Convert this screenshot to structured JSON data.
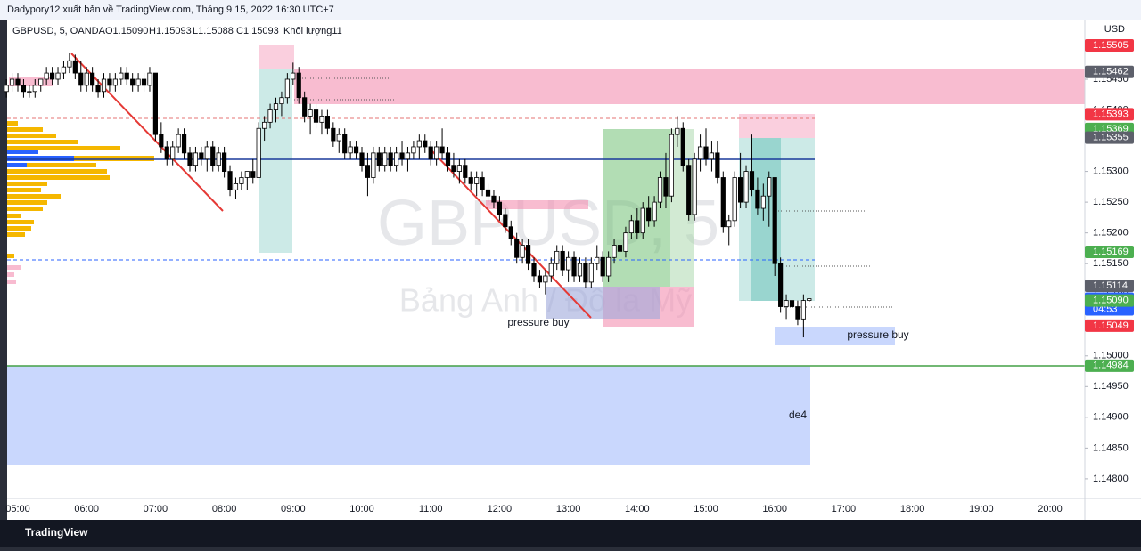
{
  "header": "Dadypory12 xuất bản về TradingView.com, Tháng 9 15, 2022 16:30 UTC+7",
  "footer": "TradingView",
  "chart_data": {
    "type": "candlestick",
    "title": "GBPUSD, 5, OANDA",
    "ohlc_legend": [
      "O1.15090",
      "H1.15093",
      "L1.15088",
      "C1.15093"
    ],
    "volume_legend": "Khối lượng11",
    "currency": "USD",
    "watermark": "GBPUSD, 5",
    "watermark_subtitle": "Bảng Anh / Đô la Mỹ",
    "annotations": [
      "pressure buy",
      "pressure buy",
      "de4"
    ],
    "xlabels": [
      "05:00",
      "06:00",
      "07:00",
      "08:00",
      "09:00",
      "10:00",
      "11:00",
      "12:00",
      "13:00",
      "14:00",
      "15:00",
      "16:00",
      "17:00",
      "18:00",
      "19:00",
      "20:00"
    ],
    "ylim": [
      1.14768,
      1.15547
    ],
    "yticks": [
      {
        "value": 1.148,
        "label": "1.14800"
      },
      {
        "value": 1.1485,
        "label": "1.14850"
      },
      {
        "value": 1.149,
        "label": "1.14900"
      },
      {
        "value": 1.1495,
        "label": "1.14950"
      },
      {
        "value": 1.15,
        "label": "1.15000"
      },
      {
        "value": 1.1505,
        "label": "1.15050"
      },
      {
        "value": 1.151,
        "label": "1.15100"
      },
      {
        "value": 1.1515,
        "label": "1.15150"
      },
      {
        "value": 1.152,
        "label": "1.15200"
      },
      {
        "value": 1.1525,
        "label": "1.15250"
      },
      {
        "value": 1.153,
        "label": "1.15300"
      },
      {
        "value": 1.1535,
        "label": "1.15350"
      },
      {
        "value": 1.154,
        "label": "1.15400"
      },
      {
        "value": 1.1545,
        "label": "1.15450"
      }
    ],
    "grid": false,
    "up_color": "#ffffff",
    "down_color": "#000000",
    "price_labels": [
      {
        "value": 1.15505,
        "color": "#f23645"
      },
      {
        "value": 1.15462,
        "color": "#5d606b"
      },
      {
        "value": 1.15393,
        "color": "#f23645"
      },
      {
        "value": 1.15369,
        "color": "#4caf50"
      },
      {
        "value": 1.15355,
        "color": "#5d606b"
      },
      {
        "value": 1.15169,
        "color": "#4caf50"
      },
      {
        "value": 1.15114,
        "color": "#5d606b"
      },
      {
        "value": 1.15093,
        "color": "#2962ff",
        "sublabel": "04:53"
      },
      {
        "value": 1.1509,
        "label": "1.15090",
        "color": "#4caf50"
      },
      {
        "value": 1.15049,
        "color": "#f23645"
      },
      {
        "value": 1.14984,
        "color": "#4caf50"
      }
    ],
    "candles": [
      [
        1.1543,
        1.1545,
        1.1542,
        1.1544
      ],
      [
        1.1544,
        1.1546,
        1.1543,
        1.1545
      ],
      [
        1.1545,
        1.1546,
        1.1543,
        1.1544
      ],
      [
        1.1544,
        1.1545,
        1.1542,
        1.1543
      ],
      [
        1.1543,
        1.1544,
        1.1542,
        1.1543
      ],
      [
        1.1543,
        1.1545,
        1.1542,
        1.1544
      ],
      [
        1.1544,
        1.1545,
        1.1543,
        1.1545
      ],
      [
        1.1545,
        1.1547,
        1.1544,
        1.1546
      ],
      [
        1.1546,
        1.1547,
        1.1544,
        1.1545
      ],
      [
        1.1545,
        1.1547,
        1.1544,
        1.1546
      ],
      [
        1.1546,
        1.1548,
        1.1545,
        1.1547
      ],
      [
        1.1547,
        1.15492,
        1.1546,
        1.1548
      ],
      [
        1.1548,
        1.1549,
        1.1545,
        1.1546
      ],
      [
        1.1546,
        1.1548,
        1.1543,
        1.1544
      ],
      [
        1.1544,
        1.1547,
        1.1543,
        1.1546
      ],
      [
        1.1546,
        1.1547,
        1.1543,
        1.1544
      ],
      [
        1.1544,
        1.1545,
        1.1542,
        1.1543
      ],
      [
        1.1543,
        1.1546,
        1.1542,
        1.1545
      ],
      [
        1.1545,
        1.1546,
        1.1543,
        1.1544
      ],
      [
        1.1544,
        1.1546,
        1.1543,
        1.1545
      ],
      [
        1.1545,
        1.1547,
        1.1544,
        1.1546
      ],
      [
        1.1546,
        1.1547,
        1.1544,
        1.1545
      ],
      [
        1.1545,
        1.1546,
        1.1543,
        1.1544
      ],
      [
        1.1544,
        1.1546,
        1.1543,
        1.1545
      ],
      [
        1.1545,
        1.1546,
        1.1543,
        1.1544
      ],
      [
        1.1544,
        1.1547,
        1.1543,
        1.1546
      ],
      [
        1.1546,
        1.1546,
        1.1535,
        1.1536
      ],
      [
        1.1536,
        1.1538,
        1.1533,
        1.1534
      ],
      [
        1.1534,
        1.1535,
        1.1531,
        1.1532
      ],
      [
        1.1532,
        1.1535,
        1.1531,
        1.1534
      ],
      [
        1.1534,
        1.1537,
        1.1533,
        1.1536
      ],
      [
        1.1536,
        1.1537,
        1.1532,
        1.1533
      ],
      [
        1.1533,
        1.1534,
        1.153,
        1.1531
      ],
      [
        1.1531,
        1.1534,
        1.153,
        1.1533
      ],
      [
        1.1533,
        1.1534,
        1.1531,
        1.1532
      ],
      [
        1.1532,
        1.1535,
        1.153,
        1.1534
      ],
      [
        1.1534,
        1.1535,
        1.153,
        1.1531
      ],
      [
        1.1531,
        1.1534,
        1.153,
        1.1533
      ],
      [
        1.1533,
        1.1534,
        1.1529,
        1.153
      ],
      [
        1.153,
        1.1531,
        1.1526,
        1.1527
      ],
      [
        1.1527,
        1.1529,
        1.15255,
        1.1528
      ],
      [
        1.1528,
        1.153,
        1.1527,
        1.1529
      ],
      [
        1.1529,
        1.153,
        1.1527,
        1.153
      ],
      [
        1.153,
        1.1532,
        1.1528,
        1.1529
      ],
      [
        1.1529,
        1.1538,
        1.1529,
        1.1537
      ],
      [
        1.1537,
        1.1539,
        1.1535,
        1.1538
      ],
      [
        1.1538,
        1.1541,
        1.1537,
        1.154
      ],
      [
        1.154,
        1.1542,
        1.1538,
        1.1541
      ],
      [
        1.1541,
        1.1543,
        1.1539,
        1.1542
      ],
      [
        1.1542,
        1.1546,
        1.1541,
        1.1545
      ],
      [
        1.1545,
        1.15477,
        1.1544,
        1.1546
      ],
      [
        1.1546,
        1.1547,
        1.1541,
        1.1542
      ],
      [
        1.1542,
        1.1543,
        1.1538,
        1.1539
      ],
      [
        1.1539,
        1.1541,
        1.1536,
        1.154
      ],
      [
        1.154,
        1.1541,
        1.1537,
        1.1538
      ],
      [
        1.1538,
        1.154,
        1.1536,
        1.1539
      ],
      [
        1.1539,
        1.154,
        1.1536,
        1.1537
      ],
      [
        1.1537,
        1.1538,
        1.1534,
        1.1535
      ],
      [
        1.1535,
        1.1537,
        1.1533,
        1.1536
      ],
      [
        1.1536,
        1.1537,
        1.1532,
        1.1533
      ],
      [
        1.1533,
        1.1535,
        1.1532,
        1.1534
      ],
      [
        1.1534,
        1.1535,
        1.1532,
        1.1533
      ],
      [
        1.1533,
        1.1534,
        1.153,
        1.1531
      ],
      [
        1.1531,
        1.1533,
        1.1526,
        1.1529
      ],
      [
        1.1529,
        1.1534,
        1.1528,
        1.1533
      ],
      [
        1.1533,
        1.1534,
        1.153,
        1.1531
      ],
      [
        1.1531,
        1.1534,
        1.153,
        1.1533
      ],
      [
        1.1533,
        1.1534,
        1.153,
        1.1531
      ],
      [
        1.1531,
        1.1534,
        1.153,
        1.1533
      ],
      [
        1.1533,
        1.1535,
        1.1531,
        1.1532
      ],
      [
        1.1532,
        1.1534,
        1.153,
        1.1533
      ],
      [
        1.1533,
        1.1535,
        1.1532,
        1.1534
      ],
      [
        1.1534,
        1.1536,
        1.1532,
        1.1535
      ],
      [
        1.1535,
        1.1536,
        1.1533,
        1.1534
      ],
      [
        1.1534,
        1.1535,
        1.1531,
        1.1532
      ],
      [
        1.1532,
        1.1535,
        1.1531,
        1.1534
      ],
      [
        1.1534,
        1.1537,
        1.1532,
        1.1533
      ],
      [
        1.1533,
        1.1534,
        1.153,
        1.1531
      ],
      [
        1.1531,
        1.1533,
        1.1529,
        1.153
      ],
      [
        1.153,
        1.1532,
        1.1528,
        1.1531
      ],
      [
        1.1531,
        1.1532,
        1.1528,
        1.1529
      ],
      [
        1.1529,
        1.153,
        1.1527,
        1.1528
      ],
      [
        1.1528,
        1.153,
        1.1526,
        1.1529
      ],
      [
        1.1529,
        1.153,
        1.1526,
        1.1527
      ],
      [
        1.1527,
        1.1528,
        1.1525,
        1.1526
      ],
      [
        1.1526,
        1.1527,
        1.1524,
        1.1525
      ],
      [
        1.1525,
        1.1526,
        1.1522,
        1.1523
      ],
      [
        1.1523,
        1.1524,
        1.152,
        1.1521
      ],
      [
        1.1521,
        1.1522,
        1.1518,
        1.1519
      ],
      [
        1.1519,
        1.152,
        1.1515,
        1.1516
      ],
      [
        1.1516,
        1.1519,
        1.1515,
        1.1518
      ],
      [
        1.1518,
        1.1519,
        1.1514,
        1.1515
      ],
      [
        1.1515,
        1.1516,
        1.1512,
        1.1513
      ],
      [
        1.1513,
        1.1514,
        1.1511,
        1.1512
      ],
      [
        1.1512,
        1.1514,
        1.151,
        1.1513
      ],
      [
        1.1513,
        1.1516,
        1.1512,
        1.1515
      ],
      [
        1.1515,
        1.1518,
        1.1514,
        1.1517
      ],
      [
        1.1517,
        1.1518,
        1.1513,
        1.1514
      ],
      [
        1.1514,
        1.1517,
        1.1512,
        1.1516
      ],
      [
        1.1516,
        1.1517,
        1.1512,
        1.1513
      ],
      [
        1.1513,
        1.1516,
        1.1512,
        1.1515
      ],
      [
        1.1515,
        1.1516,
        1.1511,
        1.1512
      ],
      [
        1.1512,
        1.1516,
        1.1511,
        1.1515
      ],
      [
        1.1515,
        1.1518,
        1.1514,
        1.1516
      ],
      [
        1.1516,
        1.1517,
        1.1512,
        1.1513
      ],
      [
        1.1513,
        1.1517,
        1.1512,
        1.1516
      ],
      [
        1.1516,
        1.1519,
        1.1515,
        1.1518
      ],
      [
        1.1518,
        1.152,
        1.1516,
        1.1517
      ],
      [
        1.1517,
        1.1521,
        1.1516,
        1.152
      ],
      [
        1.152,
        1.1523,
        1.1519,
        1.1522
      ],
      [
        1.1522,
        1.1524,
        1.1519,
        1.152
      ],
      [
        1.152,
        1.1525,
        1.1519,
        1.1524
      ],
      [
        1.1524,
        1.1526,
        1.1521,
        1.1522
      ],
      [
        1.1522,
        1.1526,
        1.1521,
        1.1525
      ],
      [
        1.1525,
        1.153,
        1.1524,
        1.1529
      ],
      [
        1.1529,
        1.1533,
        1.1524,
        1.1526
      ],
      [
        1.1526,
        1.1537,
        1.1525,
        1.1536
      ],
      [
        1.1536,
        1.1539,
        1.1534,
        1.1537
      ],
      [
        1.1537,
        1.1538,
        1.153,
        1.1531
      ],
      [
        1.1531,
        1.1532,
        1.1522,
        1.1523
      ],
      [
        1.1523,
        1.1533,
        1.1522,
        1.1532
      ],
      [
        1.1532,
        1.1536,
        1.153,
        1.1534
      ],
      [
        1.1534,
        1.1537,
        1.1531,
        1.1532
      ],
      [
        1.1532,
        1.1535,
        1.153,
        1.1533
      ],
      [
        1.1533,
        1.1535,
        1.1528,
        1.1529
      ],
      [
        1.1529,
        1.153,
        1.152,
        1.1521
      ],
      [
        1.1521,
        1.1523,
        1.1518,
        1.1522
      ],
      [
        1.1522,
        1.153,
        1.1521,
        1.1529
      ],
      [
        1.1529,
        1.1533,
        1.1524,
        1.1525
      ],
      [
        1.1525,
        1.1531,
        1.1524,
        1.153
      ],
      [
        1.153,
        1.1536,
        1.1526,
        1.1527
      ],
      [
        1.1527,
        1.1529,
        1.1523,
        1.1524
      ],
      [
        1.1524,
        1.1528,
        1.1522,
        1.1526
      ],
      [
        1.1526,
        1.153,
        1.1521,
        1.1529
      ],
      [
        1.1529,
        1.1529,
        1.1513,
        1.1515
      ],
      [
        1.1515,
        1.1516,
        1.1507,
        1.1508
      ],
      [
        1.1508,
        1.151,
        1.1506,
        1.1509
      ],
      [
        1.1509,
        1.151,
        1.1504,
        1.1508
      ],
      [
        1.1508,
        1.1509,
        1.1505,
        1.1506
      ],
      [
        1.1506,
        1.151,
        1.1503,
        1.1509
      ],
      [
        1.1509,
        1.15093,
        1.15088,
        1.15093
      ]
    ]
  }
}
